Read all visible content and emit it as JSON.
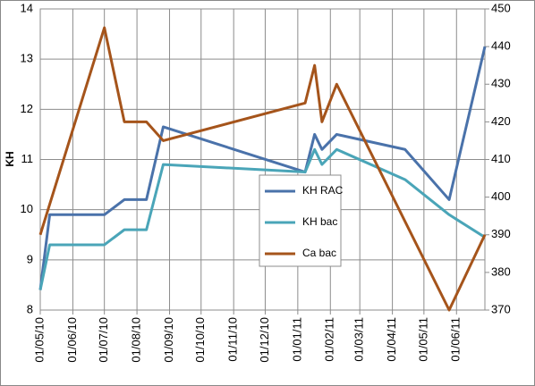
{
  "chart_data": {
    "type": "line",
    "y_label": "KH",
    "xlim": [
      "01/05/10",
      "28/06/11"
    ],
    "xticks": [
      "01/05/10",
      "01/06/10",
      "01/07/10",
      "01/08/10",
      "01/09/10",
      "01/10/10",
      "01/11/10",
      "01/12/10",
      "01/01/11",
      "01/02/11",
      "01/03/11",
      "01/04/11",
      "01/05/11",
      "01/06/11"
    ],
    "ylim": [
      8,
      14
    ],
    "yticks": [
      8,
      9,
      10,
      11,
      12,
      13,
      14
    ],
    "y2lim": [
      370,
      450
    ],
    "y2ticks": [
      370,
      380,
      390,
      400,
      410,
      420,
      430,
      440,
      450
    ],
    "grid": true,
    "series": [
      {
        "name": "KH RAC",
        "color": "#4a72aa",
        "x": [
          "01/05/10",
          "10/05/10",
          "01/07/10",
          "20/07/10",
          "10/08/10",
          "26/08/10",
          "08/01/11",
          "17/01/11",
          "24/01/11",
          "07/02/11",
          "13/04/11",
          "25/05/11",
          "28/06/11"
        ],
        "values": [
          8.4,
          9.9,
          9.9,
          10.2,
          10.2,
          11.65,
          10.75,
          11.5,
          11.2,
          11.5,
          11.2,
          10.2,
          13.25
        ]
      },
      {
        "name": "KH bac",
        "color": "#4aa5b8",
        "x": [
          "01/05/10",
          "10/05/10",
          "01/07/10",
          "20/07/10",
          "10/08/10",
          "26/08/10",
          "08/01/11",
          "17/01/11",
          "24/01/11",
          "07/02/11",
          "13/04/11",
          "25/05/11",
          "28/06/11"
        ],
        "values": [
          8.4,
          9.3,
          9.3,
          9.6,
          9.6,
          10.9,
          10.75,
          11.2,
          10.9,
          11.2,
          10.6,
          9.9,
          9.45
        ]
      },
      {
        "name": "Ca bac",
        "color": "#a5541b",
        "axis": "y2",
        "x": [
          "01/05/10",
          "01/07/10",
          "20/07/10",
          "10/08/10",
          "26/08/10",
          "08/01/11",
          "17/01/11",
          "24/01/11",
          "07/02/11",
          "25/05/11",
          "28/06/11"
        ],
        "values": [
          390,
          445,
          420,
          420,
          415,
          425,
          435,
          420,
          430,
          370,
          390
        ]
      }
    ]
  }
}
